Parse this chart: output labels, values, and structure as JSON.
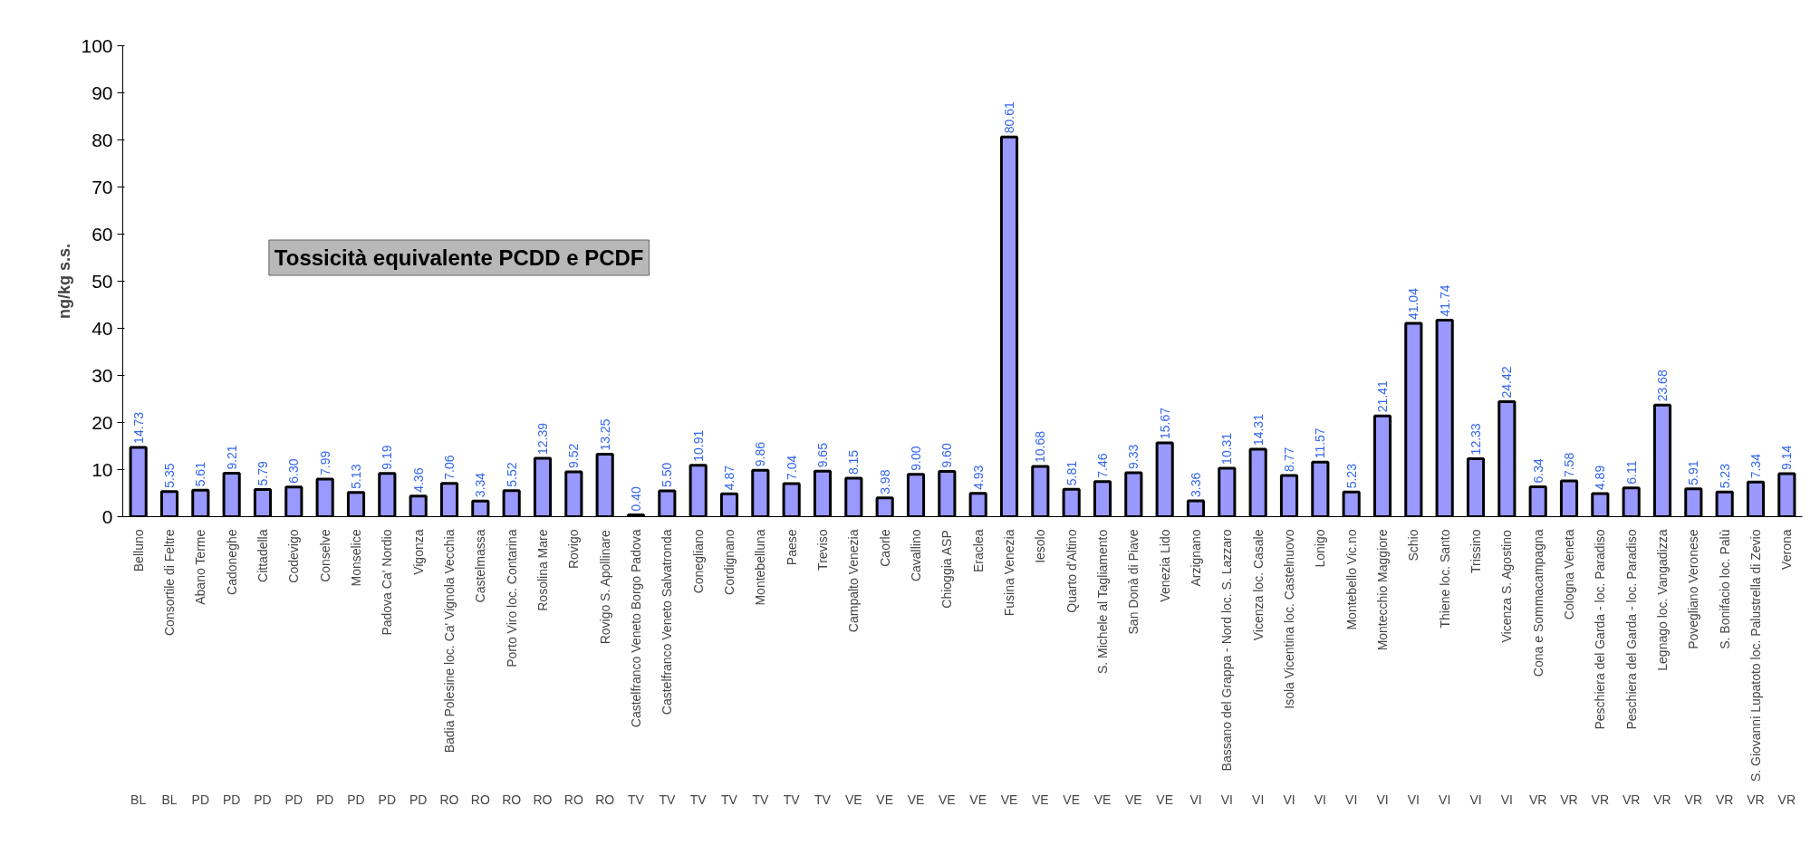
{
  "chart_data": {
    "type": "bar",
    "title": "Tossicità equivalente PCDD e PCDF",
    "ylabel": "ng/kg s.s.",
    "categories": [
      "Belluno",
      "Consortile di Feltre",
      "Abano Terme",
      "Cadoneghe",
      "Cittadella",
      "Codevigo",
      "Conselve",
      "Monselice",
      "Padova Ca' Nordio",
      "Vigonza",
      "Badia Polesine loc. Ca' Vignola Vecchia",
      "Castelmassa",
      "Porto Viro loc. Contarina",
      "Rosolina Mare",
      "Rovigo",
      "Rovigo S. Apollinare",
      "Castelfranco Veneto Borgo Padova",
      "Castelfranco Veneto Salvatronda",
      "Conegliano",
      "Cordignano",
      "Montebelluna",
      "Paese",
      "Treviso",
      "Campalto Venezia",
      "Caorle",
      "Cavallino",
      "Chioggia ASP",
      "Eraclea",
      "Fusina Venezia",
      "Iesolo",
      "Quarto d'Altino",
      "S. Michele al Tagliamento",
      "San Donà di Piave",
      "Venezia Lido",
      "Arzignano",
      "Bassano del Grappa - Nord loc. S. Lazzaro",
      "Vicenza loc. Casale",
      "Isola Vicentina loc. Castelnuovo",
      "Lonigo",
      "Montebello Vic.no",
      "Montecchio Maggiore",
      "Schio",
      "Thiene loc. Santo",
      "Trissino",
      "Vicenza S. Agostino",
      "Cona e Sommacampagna",
      "Cologna Veneta",
      "Peschiera del Garda - loc. Paradiso",
      "Peschiera del Garda - loc. Paradiso",
      "Legnago loc. Vangadizza",
      "Povegliano Veronese",
      "S. Bonifacio loc. Palù",
      "S. Giovanni Lupatoto loc. Palustrella di Zevio",
      "Verona"
    ],
    "values": [
      14.73,
      5.35,
      5.61,
      9.21,
      5.79,
      6.3,
      7.99,
      5.13,
      9.19,
      4.36,
      7.06,
      3.34,
      5.52,
      12.39,
      9.52,
      13.25,
      0.4,
      5.5,
      10.91,
      4.87,
      9.86,
      7.04,
      9.65,
      8.15,
      3.98,
      9.0,
      9.6,
      4.93,
      80.61,
      10.68,
      5.81,
      7.46,
      9.33,
      15.67,
      3.36,
      10.31,
      14.31,
      8.77,
      11.57,
      5.23,
      21.41,
      41.04,
      41.74,
      12.33,
      24.42,
      6.34,
      7.58,
      4.89,
      6.11,
      23.68,
      5.91,
      5.23,
      7.34,
      9.14
    ],
    "value_labels": [
      "14.73",
      "5.35",
      "5.61",
      "9.21",
      "5.79",
      "6.30",
      "7.99",
      "5.13",
      "9.19",
      "4.36",
      "7.06",
      "3.34",
      "5.52",
      "12.39",
      "9.52",
      "13.25",
      "0.40",
      "5.50",
      "10.91",
      "4.87",
      "9.86",
      "7.04",
      "9.65",
      "8.15",
      "3.98",
      "9.00",
      "9.60",
      "4.93",
      "80.61",
      "10.68",
      "5.81",
      "7.46",
      "9.33",
      "15.67",
      "3.36",
      "10.31",
      "14.31",
      "8.77",
      "11.57",
      "5.23",
      "21.41",
      "41.04",
      "41.74",
      "12.33",
      "24.42",
      "6.34",
      "7.58",
      "4.89",
      "6.11",
      "23.68",
      "5.91",
      "5.23",
      "7.34",
      "9.14"
    ],
    "annotations": [
      "BL",
      "BL",
      "PD",
      "PD",
      "PD",
      "PD",
      "PD",
      "PD",
      "PD",
      "PD",
      "RO",
      "RO",
      "RO",
      "RO",
      "RO",
      "RO",
      "TV",
      "TV",
      "TV",
      "TV",
      "TV",
      "TV",
      "TV",
      "VE",
      "VE",
      "VE",
      "VE",
      "VE",
      "VE",
      "VE",
      "VE",
      "VE",
      "VE",
      "VE",
      "VI",
      "VI",
      "VI",
      "VI",
      "VI",
      "VI",
      "VI",
      "VI",
      "VI",
      "VI",
      "VI",
      "VR",
      "VR",
      "VR",
      "VR",
      "VR",
      "VR",
      "VR",
      "VR",
      "VR"
    ],
    "color": "#9999ff",
    "ylim": [
      0,
      100
    ],
    "yticks": [
      0,
      10,
      20,
      30,
      40,
      50,
      60,
      70,
      80,
      90,
      100
    ],
    "grid": false
  }
}
